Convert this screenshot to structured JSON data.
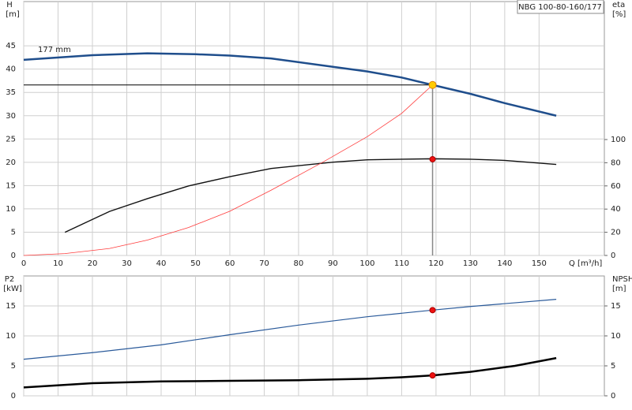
{
  "chart_data": [
    {
      "type": "line",
      "title": "NBG 100-80-160/177",
      "xlabel": "Q [m³/h]",
      "ylabel": "H",
      "yunit": "[m]",
      "y2label": "eta",
      "y2unit": "[%]",
      "curve_label": "177 mm",
      "xlim": [
        0,
        169
      ],
      "xticks": [
        0,
        10,
        20,
        30,
        40,
        50,
        60,
        70,
        80,
        90,
        100,
        110,
        120,
        130,
        140,
        150
      ],
      "ylim": [
        0,
        54.5
      ],
      "yticks": [
        0,
        5,
        10,
        15,
        20,
        25,
        30,
        35,
        40,
        45
      ],
      "y2lim": [
        0,
        219
      ],
      "y2ticks": [
        0,
        20,
        40,
        60,
        80,
        100
      ],
      "grid": true,
      "series": [
        {
          "color": "#1f4e8c",
          "width": 2.5,
          "x": [
            0,
            20,
            36,
            50,
            60,
            72,
            90,
            100,
            110,
            119,
            130,
            140,
            155
          ],
          "values": [
            42,
            43,
            43.4,
            43.2,
            42.9,
            42.3,
            40.5,
            39.5,
            38.2,
            36.6,
            34.7,
            32.7,
            30
          ]
        },
        {
          "color": "#111111",
          "width": 1.4,
          "axis": "y2",
          "x": [
            12,
            25,
            36,
            48,
            60,
            72,
            90,
            100,
            110,
            119,
            130,
            140,
            155
          ],
          "values": [
            20,
            38,
            49,
            60,
            68,
            75,
            80.5,
            82.5,
            83,
            83.4,
            83,
            82,
            78.5
          ]
        },
        {
          "color": "#ff3b3b",
          "width": 0.8,
          "x": [
            0,
            12,
            25,
            36,
            48,
            60,
            72,
            87,
            100,
            110,
            119
          ],
          "values": [
            0,
            0.4,
            1.5,
            3.3,
            6,
            9.5,
            14,
            20,
            25.5,
            30.5,
            36.6
          ]
        }
      ],
      "operating_point": {
        "x": 119,
        "y": 36.6,
        "y2": 83
      }
    },
    {
      "type": "line",
      "ylabel": "P2",
      "yunit": "[kW]",
      "y2label": "NPSH",
      "y2unit": "[m]",
      "ylim": [
        0,
        20
      ],
      "yticks": [
        0,
        5,
        10,
        15
      ],
      "y2lim": [
        0,
        20
      ],
      "y2ticks": [
        0,
        5,
        10,
        15
      ],
      "grid": true,
      "series": [
        {
          "color": "#2a5a9a",
          "width": 1.2,
          "x": [
            0,
            20,
            40,
            60,
            80,
            100,
            119,
            130,
            155
          ],
          "values": [
            6.1,
            7.2,
            8.5,
            10.2,
            11.8,
            13.2,
            14.3,
            14.9,
            16.1
          ]
        },
        {
          "color": "#000000",
          "width": 2.5,
          "axis": "y2",
          "x": [
            0,
            20,
            40,
            60,
            80,
            100,
            110,
            119,
            130,
            143,
            155
          ],
          "values": [
            1.4,
            2.1,
            2.4,
            2.5,
            2.6,
            2.85,
            3.1,
            3.4,
            4.0,
            5.0,
            6.3
          ]
        }
      ],
      "operating_point": {
        "x": 119,
        "y": 14.3,
        "y2": 3.4
      }
    }
  ]
}
